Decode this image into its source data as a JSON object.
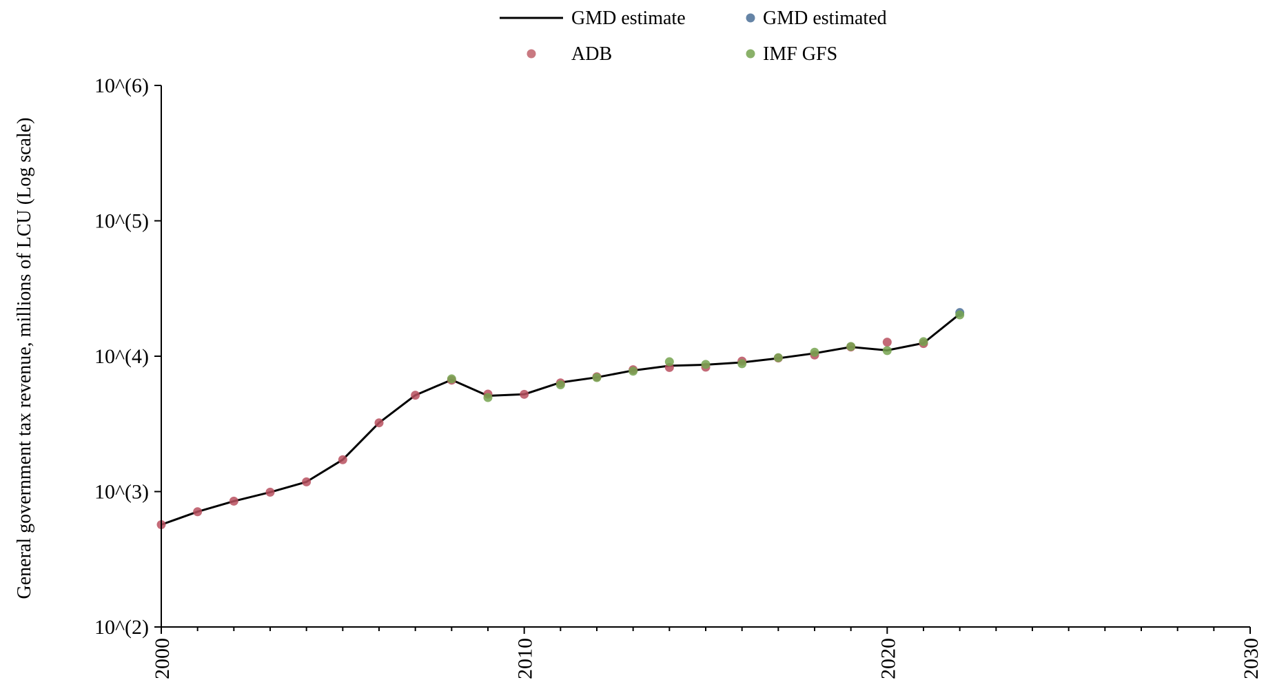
{
  "chart_data": {
    "type": "line",
    "title": "",
    "xlabel": "",
    "ylabel": "General government tax revenue, millions of LCU (Log scale)",
    "yscale": "log",
    "xlim": [
      2000,
      2030
    ],
    "ylim": [
      100,
      1000000
    ],
    "x_ticks": [
      "2000",
      "2010",
      "2020",
      "2030"
    ],
    "y_ticks": [
      "10^(2)",
      "10^(3)",
      "10^(4)",
      "10^(5)",
      "10^(6)"
    ],
    "legend_position": "top-center",
    "legend": [
      {
        "label": "GMD estimate",
        "marker": "line",
        "color": "#000000"
      },
      {
        "label": "GMD estimated",
        "marker": "dot",
        "color": "#4a6f96"
      },
      {
        "label": "ADB",
        "marker": "dot",
        "color": "#c0626b"
      },
      {
        "label": "IMF GFS",
        "marker": "dot",
        "color": "#76a34f"
      }
    ],
    "series": [
      {
        "name": "GMD estimate",
        "style": "line",
        "color": "#000000",
        "points": [
          [
            2000,
            570
          ],
          [
            2001,
            710
          ],
          [
            2002,
            850
          ],
          [
            2003,
            990
          ],
          [
            2004,
            1180
          ],
          [
            2005,
            1720
          ],
          [
            2006,
            3220
          ],
          [
            2007,
            5150
          ],
          [
            2008,
            6700
          ],
          [
            2009,
            5100
          ],
          [
            2010,
            5230
          ],
          [
            2011,
            6400
          ],
          [
            2012,
            6980
          ],
          [
            2013,
            7850
          ],
          [
            2014,
            8500
          ],
          [
            2015,
            8650
          ],
          [
            2016,
            9000
          ],
          [
            2017,
            9650
          ],
          [
            2018,
            10500
          ],
          [
            2019,
            11700
          ],
          [
            2020,
            11050
          ],
          [
            2021,
            12500
          ],
          [
            2022,
            20500
          ]
        ]
      },
      {
        "name": "GMD estimated",
        "style": "dot",
        "color": "#4a6f96",
        "points": [
          [
            2022,
            21000
          ]
        ]
      },
      {
        "name": "ADB",
        "style": "dot",
        "color": "#b9505f",
        "points": [
          [
            2000,
            570
          ],
          [
            2001,
            710
          ],
          [
            2002,
            850
          ],
          [
            2003,
            990
          ],
          [
            2004,
            1180
          ],
          [
            2005,
            1720
          ],
          [
            2006,
            3220
          ],
          [
            2007,
            5150
          ],
          [
            2008,
            6650
          ],
          [
            2009,
            5250
          ],
          [
            2010,
            5230
          ],
          [
            2011,
            6350
          ],
          [
            2012,
            7050
          ],
          [
            2013,
            7950
          ],
          [
            2014,
            8250
          ],
          [
            2015,
            8300
          ],
          [
            2016,
            9200
          ],
          [
            2017,
            9700
          ],
          [
            2018,
            10200
          ],
          [
            2019,
            11700
          ],
          [
            2020,
            12700
          ],
          [
            2021,
            12400
          ]
        ]
      },
      {
        "name": "IMF GFS",
        "style": "dot",
        "color": "#76a34f",
        "points": [
          [
            2008,
            6800
          ],
          [
            2009,
            4950
          ],
          [
            2011,
            6150
          ],
          [
            2012,
            6950
          ],
          [
            2013,
            7750
          ],
          [
            2014,
            9100
          ],
          [
            2015,
            8700
          ],
          [
            2016,
            8800
          ],
          [
            2017,
            9750
          ],
          [
            2018,
            10700
          ],
          [
            2019,
            11800
          ],
          [
            2020,
            11000
          ],
          [
            2021,
            12800
          ],
          [
            2022,
            20200
          ]
        ]
      }
    ]
  }
}
